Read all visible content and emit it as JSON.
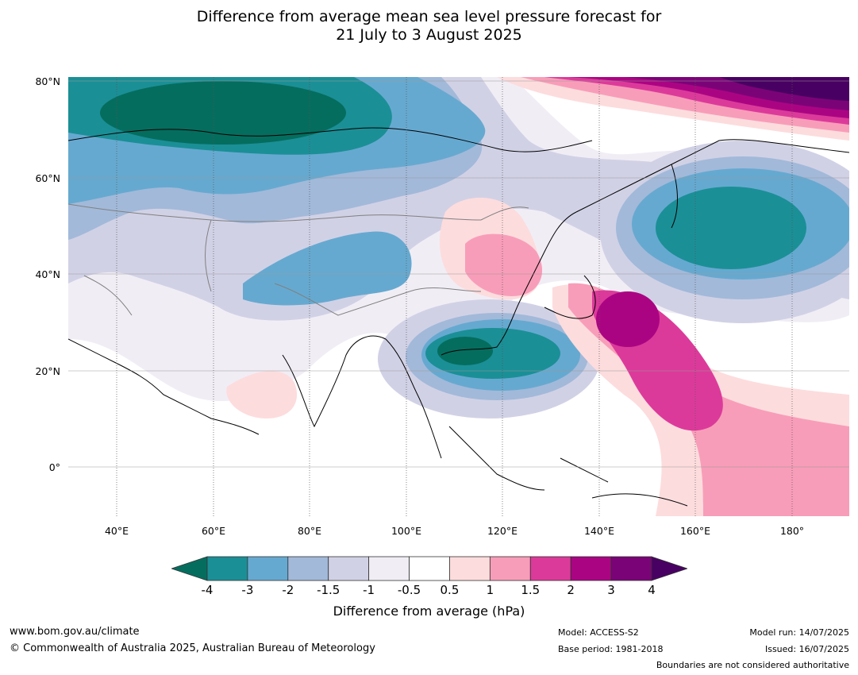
{
  "title_line1": "Difference from average mean sea level pressure forecast for",
  "title_line2": "21 July to 3 August 2025",
  "lat_labels": [
    "80°N",
    "60°N",
    "40°N",
    "20°N",
    "0°"
  ],
  "lon_labels": [
    "40°E",
    "60°E",
    "80°E",
    "100°E",
    "120°E",
    "140°E",
    "160°E",
    "180°"
  ],
  "colorbar": {
    "ticks": [
      "-4",
      "-3",
      "-2",
      "-1.5",
      "-1",
      "-0.5",
      "0.5",
      "1",
      "1.5",
      "2",
      "3",
      "4"
    ],
    "colors": [
      "#056d5e",
      "#1b8f96",
      "#66a9d0",
      "#a2b9d9",
      "#d1d1e6",
      "#f1edf5",
      "#ffffff",
      "#fddcdd",
      "#f89db9",
      "#dc3a9a",
      "#ab0483",
      "#7b0378",
      "#480062"
    ],
    "label": "Difference from average (hPa)"
  },
  "footer": {
    "url": "www.bom.gov.au/climate",
    "copyright": "© Commonwealth of Australia 2025, Australian Bureau of Meteorology",
    "model": "Model: ACCESS-S2",
    "base_period": "Base period: 1981-2018",
    "model_run": "Model run: 14/07/2025",
    "issued": "Issued: 16/07/2025",
    "boundaries": "Boundaries are not considered authoritative"
  }
}
